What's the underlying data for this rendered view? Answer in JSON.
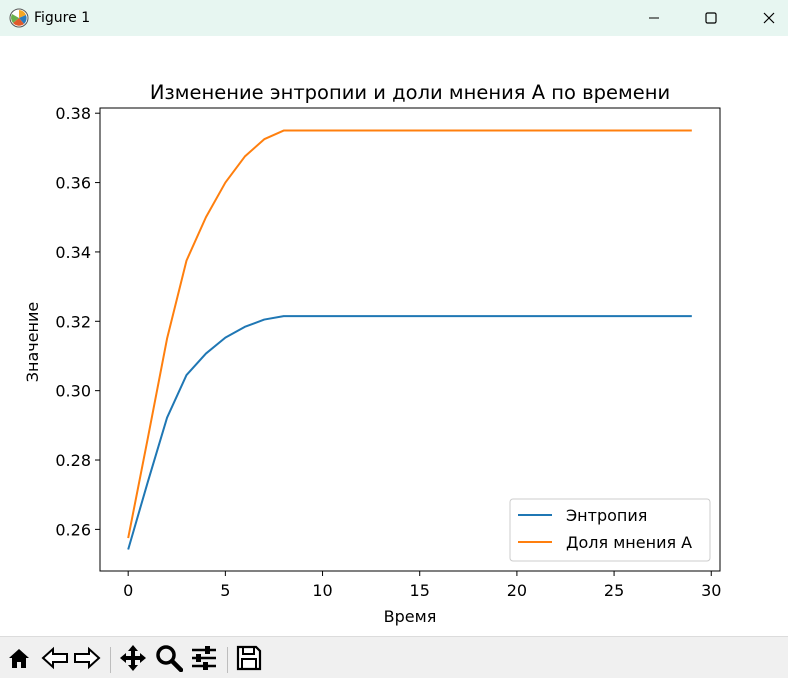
{
  "window": {
    "title": "Figure 1",
    "icons": {
      "app": "matplotlib-logo-icon",
      "minimize": "minimize-icon",
      "maximize": "maximize-icon",
      "close": "close-icon"
    }
  },
  "toolbar": {
    "tools": [
      "home-icon",
      "back-arrow-icon",
      "forward-arrow-icon",
      "pan-icon",
      "zoom-icon",
      "configure-subplots-icon",
      "save-icon"
    ]
  },
  "chart_data": {
    "type": "line",
    "title": "Изменение энтропии и доли мнения A по времени",
    "xlabel": "Время",
    "ylabel": "Значение",
    "xlim": [
      -1.45,
      30.45
    ],
    "ylim": [
      0.248,
      0.3815
    ],
    "xticks": [
      0,
      5,
      10,
      15,
      20,
      25,
      30
    ],
    "yticks": [
      0.26,
      0.28,
      0.3,
      0.32,
      0.34,
      0.36,
      0.38
    ],
    "ytick_labels": [
      "0.26",
      "0.28",
      "0.30",
      "0.32",
      "0.34",
      "0.36",
      "0.38"
    ],
    "grid": false,
    "legend_position": "lower-right",
    "x": [
      0,
      1,
      2,
      3,
      4,
      5,
      6,
      7,
      8,
      9,
      10,
      11,
      12,
      13,
      14,
      15,
      16,
      17,
      18,
      19,
      20,
      21,
      22,
      23,
      24,
      25,
      26,
      27,
      28,
      29
    ],
    "series": [
      {
        "name": "Энтропия",
        "color": "#1f77b4",
        "values": [
          0.2542,
          0.2735,
          0.2922,
          0.3045,
          0.3107,
          0.3153,
          0.3184,
          0.3205,
          0.3215,
          0.3215,
          0.3215,
          0.3215,
          0.3215,
          0.3215,
          0.3215,
          0.3215,
          0.3215,
          0.3215,
          0.3215,
          0.3215,
          0.3215,
          0.3215,
          0.3215,
          0.3215,
          0.3215,
          0.3215,
          0.3215,
          0.3215,
          0.3215,
          0.3215
        ]
      },
      {
        "name": "Доля мнения A",
        "color": "#ff7f0e",
        "values": [
          0.2575,
          0.286,
          0.315,
          0.3375,
          0.35,
          0.36,
          0.3675,
          0.3725,
          0.375,
          0.375,
          0.375,
          0.375,
          0.375,
          0.375,
          0.375,
          0.375,
          0.375,
          0.375,
          0.375,
          0.375,
          0.375,
          0.375,
          0.375,
          0.375,
          0.375,
          0.375,
          0.375,
          0.375,
          0.375,
          0.375
        ]
      }
    ]
  }
}
